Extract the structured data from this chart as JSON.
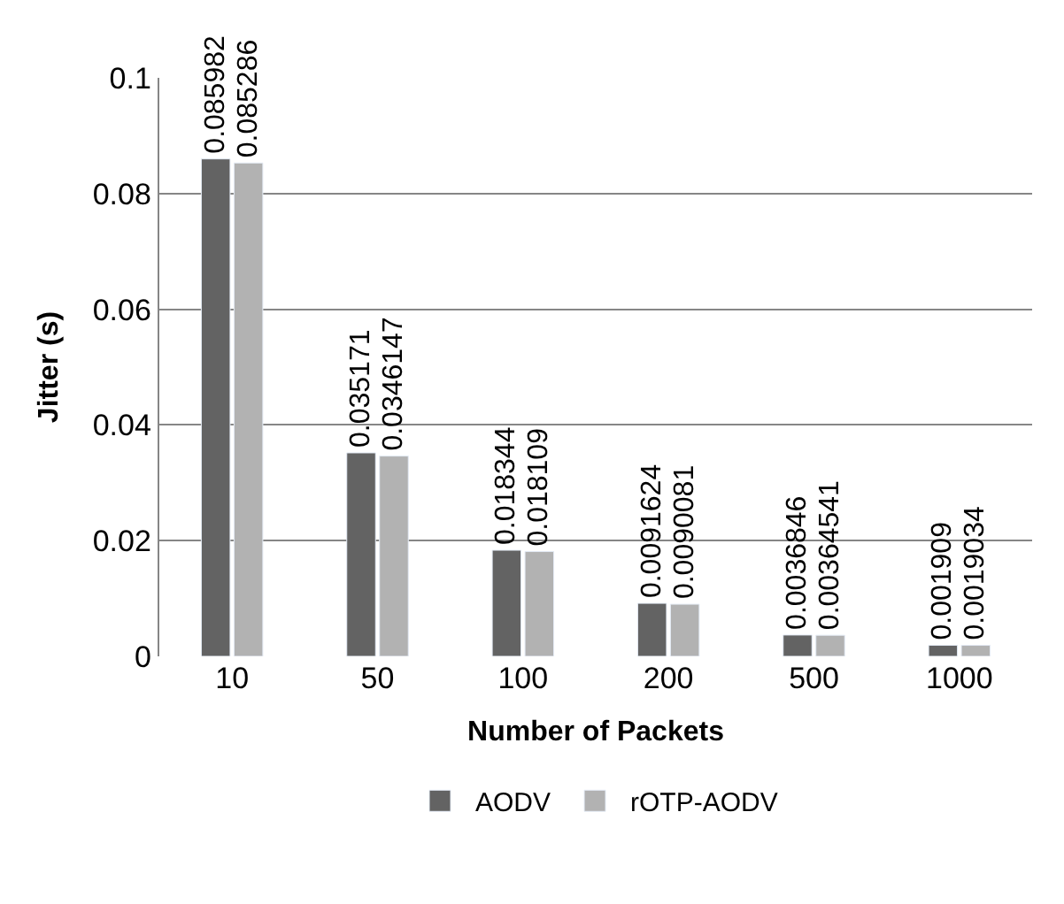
{
  "chart_data": {
    "type": "bar",
    "xlabel": "Number of Packets",
    "ylabel": "Jitter (s)",
    "categories": [
      "10",
      "50",
      "100",
      "200",
      "500",
      "1000"
    ],
    "series": [
      {
        "name": "AODV",
        "color": "#636363",
        "values": [
          0.085982,
          0.035171,
          0.018344,
          0.0091624,
          0.0036846,
          0.001909
        ]
      },
      {
        "name": "rOTP-AODV",
        "color": "#b2b2b2",
        "values": [
          0.085286,
          0.0346147,
          0.018109,
          0.0090081,
          0.00364541,
          0.0019034
        ]
      }
    ],
    "ylim": [
      0,
      0.1
    ],
    "yticks": [
      0,
      0.02,
      0.04,
      0.06,
      0.08,
      0.1
    ],
    "grid": "y",
    "legend": "bottom",
    "data_labels": true
  }
}
